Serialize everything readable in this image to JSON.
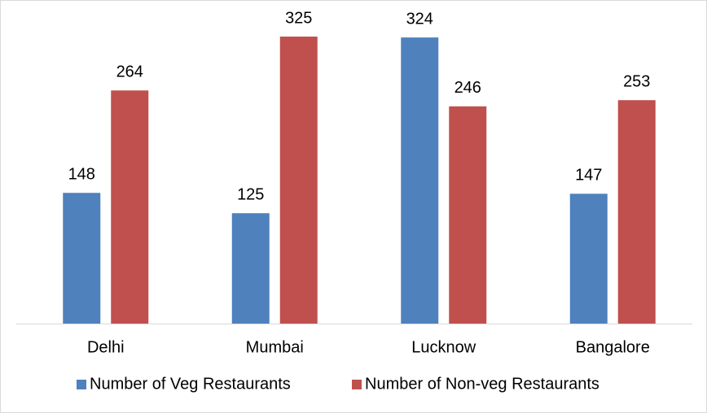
{
  "chart_data": {
    "type": "bar",
    "categories": [
      "Delhi",
      "Mumbai",
      "Lucknow",
      "Bangalore"
    ],
    "series": [
      {
        "name": "Number of Veg Restaurants",
        "color": "#4f81bd",
        "values": [
          148,
          125,
          324,
          147
        ]
      },
      {
        "name": "Number of Non-veg Restaurants",
        "color": "#c0504d",
        "values": [
          264,
          325,
          246,
          253
        ]
      }
    ],
    "legend": "bottom"
  }
}
